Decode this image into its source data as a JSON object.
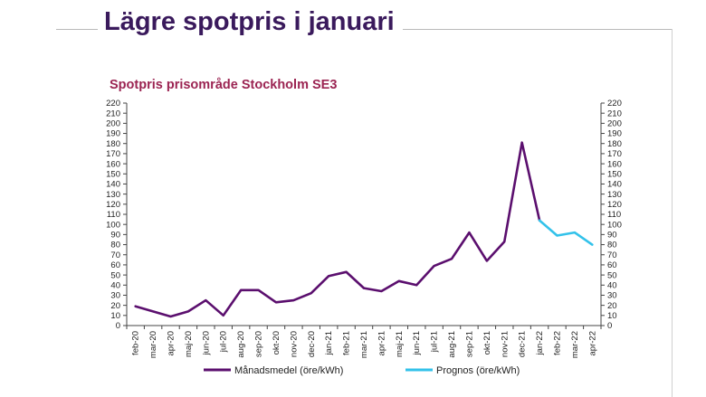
{
  "slide": {
    "title": "Lägre spotpris i januari"
  },
  "chart_data": {
    "type": "line",
    "title": "Spotpris prisområde Stockholm SE3",
    "xlabel": "",
    "ylabel": "",
    "ylim": [
      0,
      220
    ],
    "y_tick_step": 10,
    "grid": false,
    "legend_position": "bottom",
    "categories": [
      "feb-20",
      "mar-20",
      "apr-20",
      "maj-20",
      "jun-20",
      "jul-20",
      "aug-20",
      "sep-20",
      "okt-20",
      "nov-20",
      "dec-20",
      "jan-21",
      "feb-21",
      "mar-21",
      "apr-21",
      "maj-21",
      "jun-21",
      "jul-21",
      "aug-21",
      "sep-21",
      "okt-21",
      "nov-21",
      "dec-21",
      "jan-22",
      "feb-22",
      "mar-22",
      "apr-22"
    ],
    "y_ticks": [
      "0",
      "10",
      "20",
      "30",
      "40",
      "50",
      "60",
      "70",
      "80",
      "90",
      "100",
      "110",
      "120",
      "130",
      "140",
      "150",
      "160",
      "170",
      "180",
      "190",
      "200",
      "210",
      "220"
    ],
    "series": [
      {
        "name": "Månadsmedel (öre/kWh)",
        "color": "#5b0f6e",
        "values": [
          19,
          14,
          9,
          14,
          25,
          10,
          35,
          35,
          23,
          25,
          32,
          49,
          53,
          37,
          34,
          44,
          40,
          59,
          66,
          92,
          64,
          83,
          181,
          104,
          null,
          null,
          null
        ]
      },
      {
        "name": "Prognos (öre/kWh)",
        "color": "#33c2ea",
        "values": [
          null,
          null,
          null,
          null,
          null,
          null,
          null,
          null,
          null,
          null,
          null,
          null,
          null,
          null,
          null,
          null,
          null,
          null,
          null,
          null,
          null,
          null,
          null,
          104,
          89,
          92,
          80
        ]
      }
    ]
  }
}
